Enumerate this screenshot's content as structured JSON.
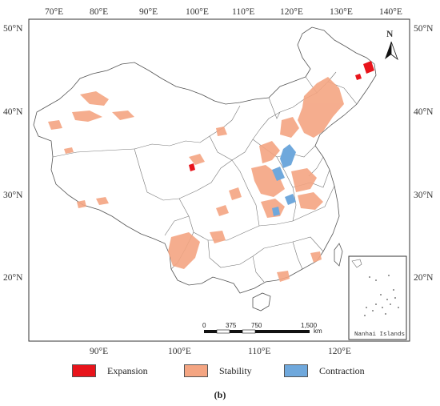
{
  "map": {
    "top_lon_labels": [
      "70°E",
      "80°E",
      "90°E",
      "100°E",
      "110°E",
      "120°E",
      "130°E",
      "140°E"
    ],
    "bottom_lon_labels": [
      "90°E",
      "100°E",
      "110°E",
      "120°E"
    ],
    "left_lat_labels": [
      "50°N",
      "40°N",
      "30°N",
      "20°N"
    ],
    "right_lat_labels": [
      "50°N",
      "40°N",
      "30°N",
      "20°N"
    ],
    "north_arrow_label": "N",
    "inset_label": "Nanhai Islands",
    "scale_bar": {
      "labels": [
        "0",
        "375",
        "750",
        "1,500"
      ],
      "unit": "km"
    }
  },
  "legend": [
    {
      "label": "Expansion",
      "color": "#e8141b"
    },
    {
      "label": "Stability",
      "color": "#f4a582"
    },
    {
      "label": "Contraction",
      "color": "#6fa8dc"
    }
  ],
  "caption": "(b)"
}
